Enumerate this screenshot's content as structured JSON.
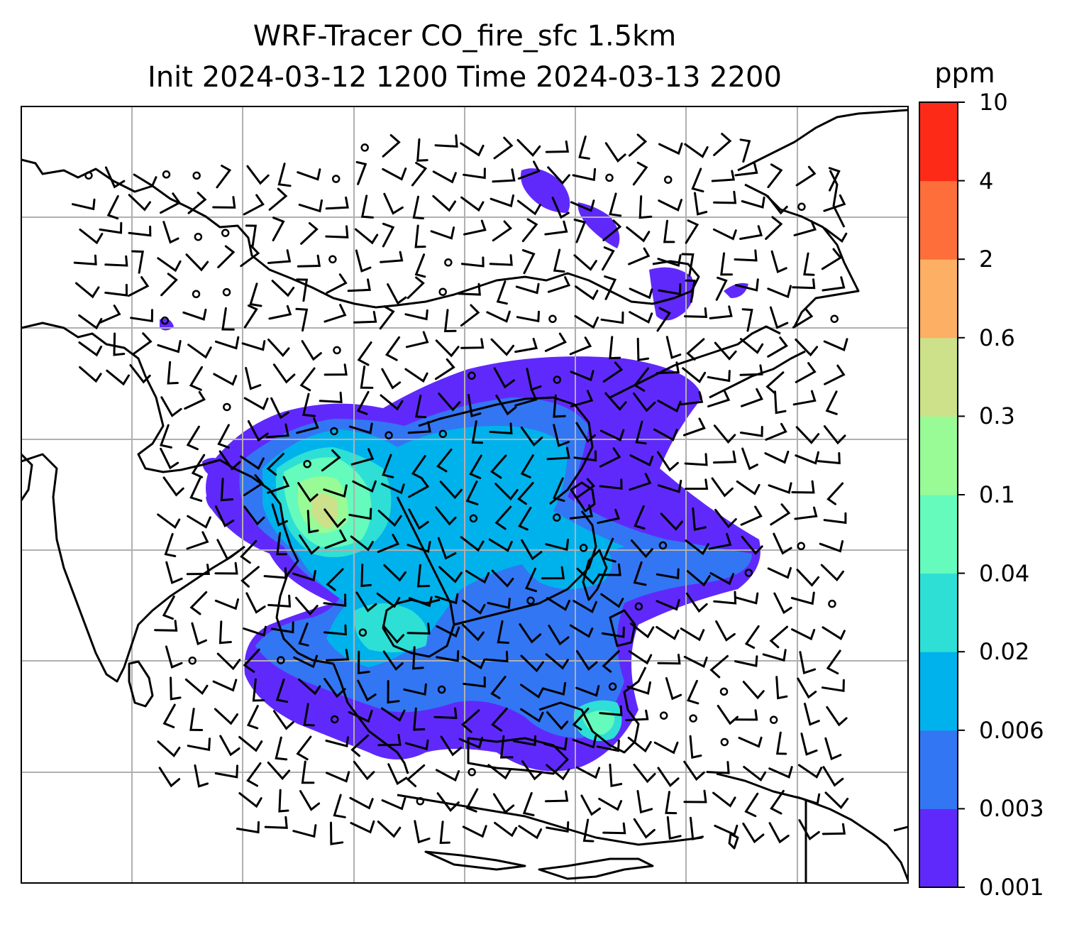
{
  "figure": {
    "title_line_1": "WRF-Tracer CO_fire_sfc 1.5km",
    "title_line_2": "Init 2024-03-12 1200 Time 2024-03-13 2200"
  },
  "colorbar": {
    "unit": "ppm",
    "levels": [
      "0.001",
      "0.003",
      "0.006",
      "0.02",
      "0.04",
      "0.1",
      "0.3",
      "0.6",
      "2",
      "4",
      "10"
    ],
    "colors": [
      "#6029fb",
      "#3276f3",
      "#00b2ec",
      "#2edfd5",
      "#64fbbd",
      "#98fb96",
      "#cce18a",
      "#fdaf64",
      "#fd6e3b",
      "#fd2a18"
    ]
  },
  "map": {
    "gridlines": true,
    "grid_color": "#b0b0b0",
    "coastline_color": "#000000",
    "wind_barbs": true
  }
}
